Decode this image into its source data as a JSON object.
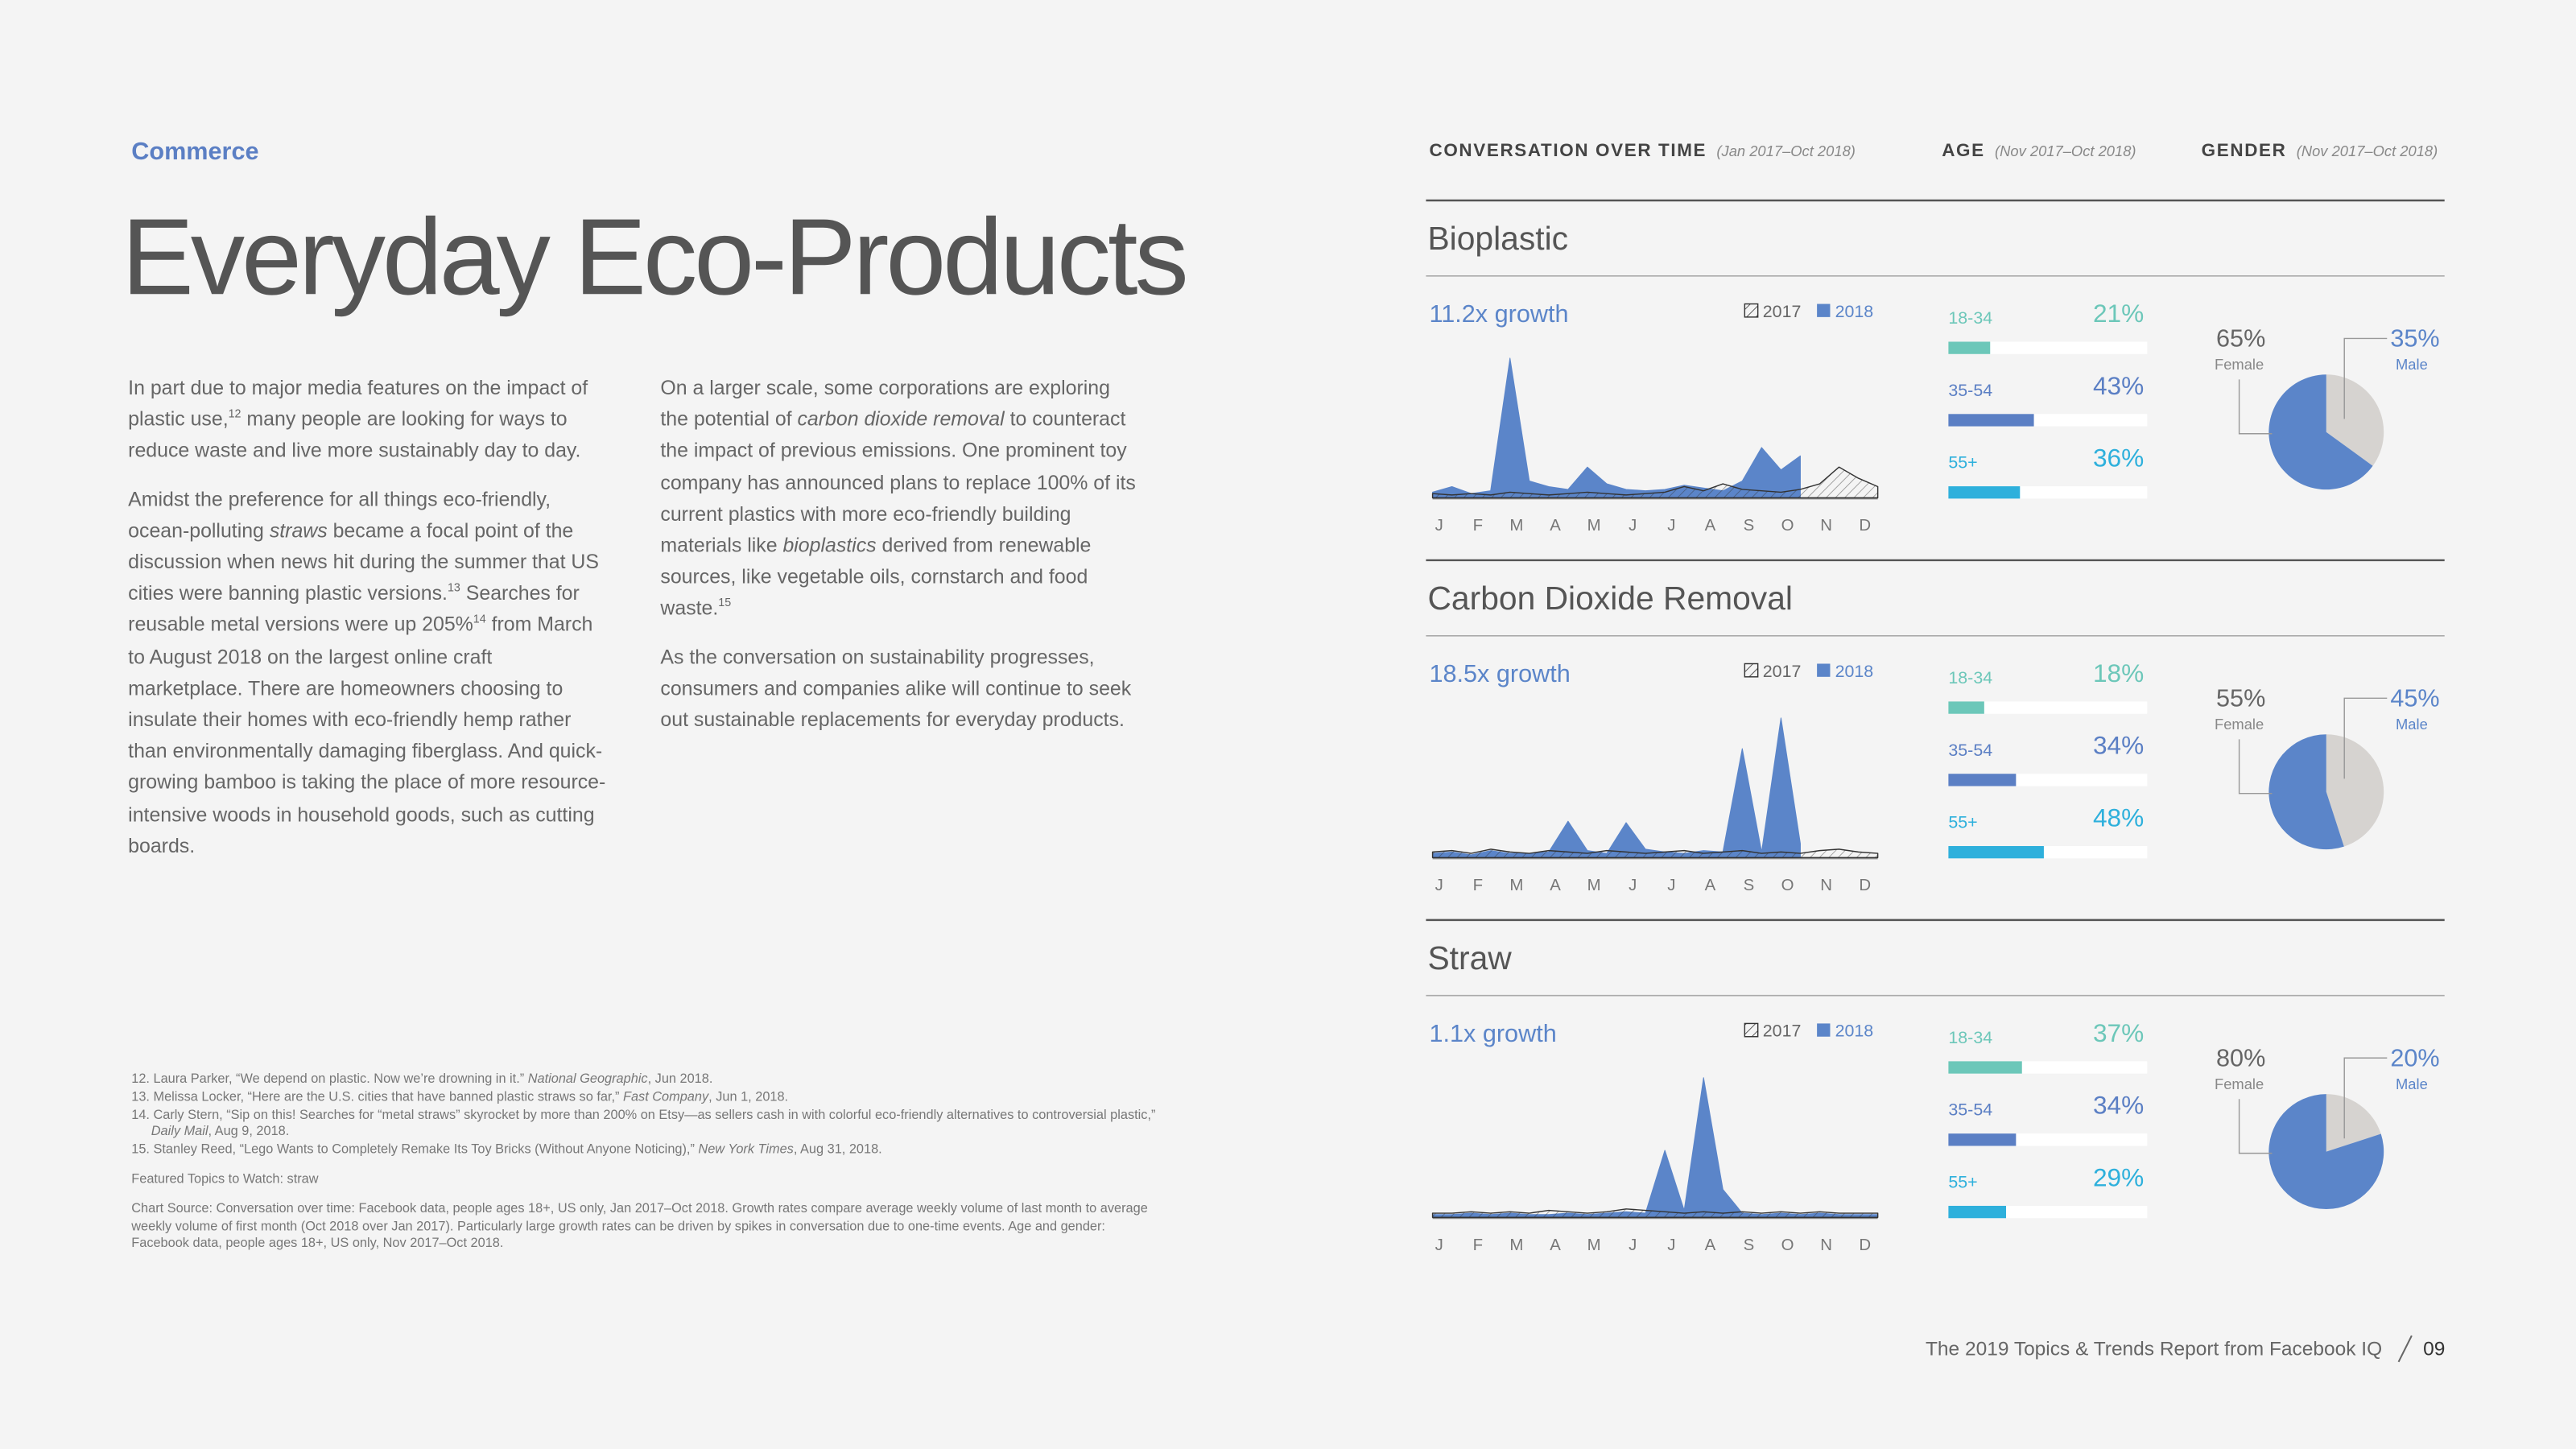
{
  "header": {
    "section": "Commerce",
    "title": "Everyday Eco-Products"
  },
  "body": {
    "column1": [
      [
        "In part due to major media features on the impact of plastic use,",
        "12",
        " many people are looking for ways to reduce waste and live more sustainably day to day."
      ],
      [
        "Amidst the preference for all things eco-friendly, ocean-polluting ",
        "straws",
        " became a focal point of the discussion when news hit during the summer that US cities were banning plastic versions.",
        "13",
        " Searches for reusable metal versions were up 205%",
        "14",
        " from March to August 2018 on the largest online craft marketplace. There are homeowners choosing to insulate their homes with eco-friendly hemp rather than environmentally damaging fiberglass. And quick-growing bamboo is taking the place of more resource-intensive woods in household goods, such as cutting boards."
      ]
    ],
    "column2": [
      [
        "On a larger scale, some corporations are exploring the potential of ",
        "carbon dioxide removal",
        " to counteract the impact of previous emissions. One prominent toy company has announced plans to replace 100% of its current plastics with more eco-friendly building materials like ",
        "bioplastics",
        " derived from renewable sources, like vegetable oils, cornstarch and food waste.",
        "15"
      ],
      [
        "As the conversation on sustainability progresses, consumers and companies alike will continue to seek out sustainable replacements for everyday products."
      ]
    ]
  },
  "footnotes": [
    [
      "12. Laura Parker, “We depend on plastic. Now we’re drowning in it.” ",
      "National Geographic",
      ", Jun 2018."
    ],
    [
      "13. Melissa Locker, “Here are the U.S. cities that have banned plastic straws so far,” ",
      "Fast Company",
      ", Jun 1, 2018."
    ],
    [
      "14. Carly Stern, “Sip on this! Searches for “metal straws” skyrocket by more than 200% on Etsy—as sellers cash in with colorful eco-friendly alternatives to controversial plastic,” ",
      "Daily Mail",
      ", Aug 9, 2018."
    ],
    [
      "15. Stanley Reed, “Lego Wants to Completely Remake Its Toy Bricks (Without Anyone Noticing),” ",
      "New York Times",
      ", Aug 31, 2018."
    ]
  ],
  "featured": "Featured Topics to Watch: straw",
  "chart_source": "Chart Source: Conversation over time: Facebook data, people ages 18+, US only, Jan 2017–Oct 2018. Growth rates compare average weekly volume of last month to average weekly volume of first month (Oct 2018 over Jan 2017). Particularly large growth rates can be driven by spikes in conversation due to one-time events. Age and gender: Facebook data, people ages 18+, US only, Nov 2017–Oct 2018.",
  "column_headers": [
    {
      "label": "CONVERSATION OVER TIME",
      "note": "(Jan 2017–Oct 2018)"
    },
    {
      "label": "AGE",
      "note": "(Nov 2017–Oct 2018)"
    },
    {
      "label": "GENDER",
      "note": "(Nov 2017–Oct 2018)"
    }
  ],
  "topics": [
    {
      "name": "Bioplastic",
      "conversation": {
        "type": "area",
        "title": "11.2x growth",
        "categories": [
          "J",
          null,
          "F",
          null,
          "M",
          null,
          "A",
          null,
          "M",
          null,
          "J",
          null,
          "J",
          null,
          "A",
          null,
          "S",
          null,
          "O",
          null,
          "N",
          null,
          "D",
          null
        ],
        "ylim": [
          0,
          100
        ],
        "series": [
          {
            "name": "2017",
            "color": "#333333",
            "pattern": "hatch",
            "values": [
              3,
              2,
              3,
              2,
              4,
              3,
              2,
              3,
              4,
              3,
              2,
              3,
              4,
              8,
              5,
              10,
              6,
              5,
              4,
              6,
              10,
              22,
              14,
              8
            ]
          },
          {
            "name": "2018",
            "color": "#5b85c9",
            "values": [
              4,
              8,
              3,
              5,
              100,
              12,
              8,
              6,
              22,
              10,
              6,
              5,
              6,
              9,
              7,
              5,
              12,
              36,
              20,
              30,
              null,
              null,
              null,
              null
            ]
          }
        ]
      },
      "age": {
        "type": "bar",
        "categories": [
          "18-34",
          "35-54",
          "55+"
        ],
        "values": [
          21,
          43,
          36
        ],
        "value_labels": [
          "21%",
          "43%",
          "36%"
        ],
        "colors": [
          "#6cc7b9",
          "#5b7fc4",
          "#2eb0dc"
        ],
        "xlim": [
          0,
          100
        ]
      },
      "gender": {
        "type": "pie",
        "categories": [
          "Female",
          "Male"
        ],
        "values": [
          65,
          35
        ],
        "value_labels": [
          "65%",
          "35%"
        ],
        "colors": [
          "#5b85c9",
          "#d6d3d0"
        ]
      }
    },
    {
      "name": "Carbon Dioxide Removal",
      "conversation": {
        "type": "area",
        "title": "18.5x growth",
        "categories": [
          "J",
          null,
          "F",
          null,
          "M",
          null,
          "A",
          null,
          "M",
          null,
          "J",
          null,
          "J",
          null,
          "A",
          null,
          "S",
          null,
          "O",
          null,
          "N",
          null,
          "D",
          null
        ],
        "ylim": [
          0,
          100
        ],
        "series": [
          {
            "name": "2017",
            "color": "#333333",
            "pattern": "hatch",
            "values": [
              4,
              5,
              3,
              6,
              4,
              3,
              5,
              4,
              3,
              5,
              4,
              3,
              4,
              5,
              3,
              4,
              5,
              3,
              4,
              3,
              5,
              6,
              4,
              3
            ]
          },
          {
            "name": "2018",
            "color": "#5b85c9",
            "values": [
              3,
              4,
              2,
              5,
              3,
              3,
              4,
              26,
              5,
              3,
              25,
              6,
              4,
              3,
              5,
              4,
              78,
              4,
              100,
              10,
              null,
              null,
              null,
              null
            ]
          }
        ]
      },
      "age": {
        "type": "bar",
        "categories": [
          "18-34",
          "35-54",
          "55+"
        ],
        "values": [
          18,
          34,
          48
        ],
        "value_labels": [
          "18%",
          "34%",
          "48%"
        ],
        "colors": [
          "#6cc7b9",
          "#5b7fc4",
          "#2eb0dc"
        ],
        "xlim": [
          0,
          100
        ]
      },
      "gender": {
        "type": "pie",
        "categories": [
          "Female",
          "Male"
        ],
        "values": [
          55,
          45
        ],
        "value_labels": [
          "55%",
          "45%"
        ],
        "colors": [
          "#5b85c9",
          "#d6d3d0"
        ]
      }
    },
    {
      "name": "Straw",
      "conversation": {
        "type": "area",
        "title": "1.1x growth",
        "categories": [
          "J",
          null,
          "F",
          null,
          "M",
          null,
          "A",
          null,
          "M",
          null,
          "J",
          null,
          "J",
          null,
          "A",
          null,
          "S",
          null,
          "O",
          null,
          "N",
          null,
          "D",
          null
        ],
        "ylim": [
          0,
          100
        ],
        "series": [
          {
            "name": "2017",
            "color": "#333333",
            "pattern": "hatch",
            "values": [
              3,
              3,
              4,
              3,
              4,
              3,
              5,
              4,
              3,
              4,
              6,
              5,
              4,
              3,
              4,
              3,
              4,
              3,
              4,
              3,
              4,
              3,
              3,
              3
            ]
          },
          {
            "name": "2018",
            "color": "#5b85c9",
            "values": [
              2,
              2,
              3,
              2,
              3,
              2,
              2,
              3,
              2,
              3,
              4,
              3,
              48,
              5,
              100,
              20,
              3,
              2,
              3,
              2,
              3,
              2,
              2,
              2
            ]
          }
        ]
      },
      "age": {
        "type": "bar",
        "categories": [
          "18-34",
          "35-54",
          "55+"
        ],
        "values": [
          37,
          34,
          29
        ],
        "value_labels": [
          "37%",
          "34%",
          "29%"
        ],
        "colors": [
          "#6cc7b9",
          "#5b7fc4",
          "#2eb0dc"
        ],
        "xlim": [
          0,
          100
        ]
      },
      "gender": {
        "type": "pie",
        "categories": [
          "Female",
          "Male"
        ],
        "values": [
          80,
          20
        ],
        "value_labels": [
          "80%",
          "20%"
        ],
        "colors": [
          "#5b85c9",
          "#d6d3d0"
        ]
      }
    }
  ],
  "footer": {
    "report": "The 2019 Topics & Trends Report from Facebook IQ",
    "page": "09"
  }
}
